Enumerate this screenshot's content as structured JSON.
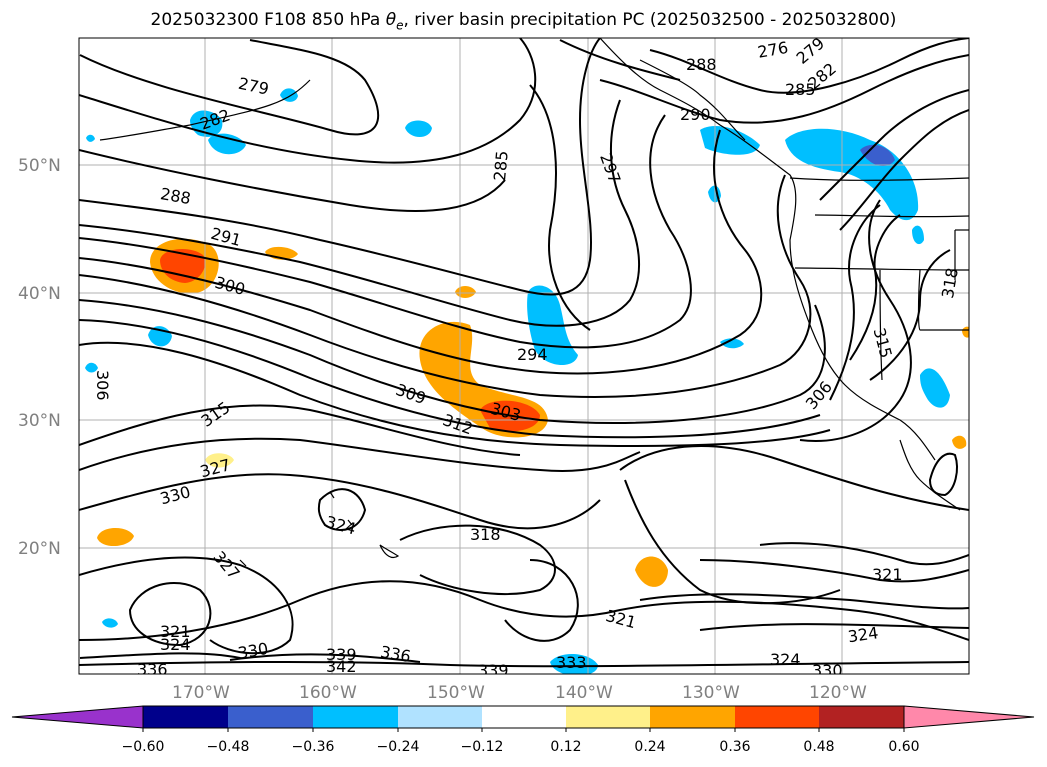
{
  "title": "2025032300 F108 850 hPa θe, river basin precipitation PC (2025032500 - 2025032800)",
  "title_main": "2025032300 F108 850 hPa ",
  "title_theta": "θ",
  "title_sub": "e",
  "title_rest": ", river basin precipitation PC (2025032500 - 2025032800)",
  "map": {
    "lat_labels": [
      "50°N",
      "40°N",
      "30°N",
      "20°N"
    ],
    "lon_labels": [
      "170°W",
      "160°W",
      "150°W",
      "140°W",
      "130°W",
      "120°W"
    ],
    "contour_labels": [
      "279",
      "282",
      "288",
      "291",
      "300",
      "285",
      "297",
      "276",
      "279",
      "282",
      "285",
      "288",
      "290",
      "294",
      "303",
      "309",
      "312",
      "315",
      "306",
      "315",
      "318",
      "306",
      "321",
      "324",
      "327",
      "330",
      "324",
      "327",
      "321",
      "324",
      "330",
      "336",
      "339",
      "342",
      "336",
      "339",
      "333",
      "330",
      "324",
      "318",
      "321",
      "312"
    ]
  },
  "colorbar": {
    "ticks": [
      "−0.60",
      "−0.48",
      "−0.36",
      "−0.24",
      "−0.12",
      "0.12",
      "0.24",
      "0.36",
      "0.48",
      "0.60"
    ],
    "colors": [
      "#9932cc",
      "#00008b",
      "#3a5fcd",
      "#00bfff",
      "#b0e2ff",
      "#ffffff",
      "#fff08a",
      "#ffa500",
      "#ff4500",
      "#b22222",
      "#ff88aa"
    ]
  }
}
